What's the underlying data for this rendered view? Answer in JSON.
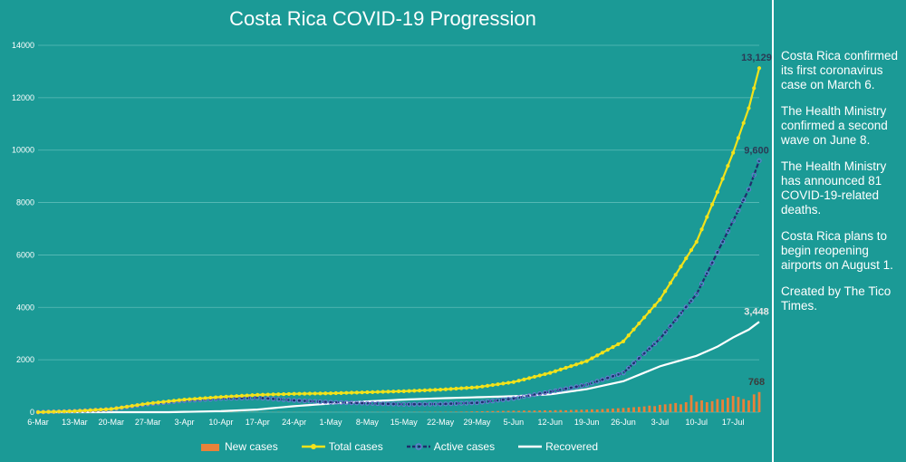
{
  "page": {
    "notes": [
      "Costa Rica confirmed its first coronavirus case on March 6.",
      "The Health Ministry confirmed a second wave on June 8.",
      "The Health Ministry has announced 81 COVID-19-related deaths.",
      "Costa Rica plans to begin reopening airports on August 1.",
      "Created by The Tico Times."
    ]
  },
  "colors": {
    "background": "#1b9a96",
    "new_cases": "#e8823a",
    "total_cases": "#f2e21a",
    "active_cases": "#1f2e6b",
    "active_marker": "#6f78d8",
    "recovered": "#ffffff",
    "grid": "#5cbcb8",
    "text": "#ffffff"
  },
  "chart_data": {
    "type": "line",
    "title": "Costa Rica COVID-19 Progression",
    "start_date": "6-Mar",
    "num_days": 139,
    "ylim": [
      0,
      14000
    ],
    "y_ticks": [
      0,
      2000,
      4000,
      6000,
      8000,
      10000,
      12000,
      14000
    ],
    "y_tick_labels": [
      "0",
      "2000",
      "4000",
      "6000",
      "8000",
      "10000",
      "12000",
      "14000"
    ],
    "x_tick_labels": [
      "6-Mar",
      "13-Mar",
      "20-Mar",
      "27-Mar",
      "3-Apr",
      "10-Apr",
      "17-Apr",
      "24-Apr",
      "1-May",
      "8-May",
      "15-May",
      "22-May",
      "29-May",
      "5-Jun",
      "12-Jun",
      "19-Jun",
      "26-Jun",
      "3-Jul",
      "10-Jul",
      "17-Jul"
    ],
    "x_tick_step_days": 7,
    "series": [
      {
        "name": "Total cases",
        "kind": "line",
        "anchor_days": [
          0,
          7,
          14,
          21,
          28,
          35,
          42,
          49,
          56,
          63,
          70,
          77,
          84,
          91,
          98,
          105,
          112,
          119,
          126,
          130,
          133,
          136,
          138
        ],
        "anchor_values": [
          1,
          40,
          120,
          330,
          480,
          580,
          660,
          700,
          720,
          760,
          800,
          860,
          950,
          1150,
          1500,
          1950,
          2700,
          4300,
          6500,
          8400,
          9900,
          11600,
          13129
        ]
      },
      {
        "name": "Active cases",
        "kind": "line",
        "anchor_days": [
          0,
          7,
          14,
          21,
          28,
          35,
          42,
          49,
          56,
          63,
          70,
          77,
          84,
          91,
          98,
          105,
          112,
          119,
          126,
          130,
          133,
          136,
          138
        ],
        "anchor_values": [
          1,
          40,
          115,
          310,
          440,
          520,
          550,
          450,
          380,
          340,
          300,
          310,
          360,
          520,
          780,
          1050,
          1500,
          2800,
          4500,
          6100,
          7300,
          8500,
          9600
        ]
      },
      {
        "name": "Recovered",
        "kind": "line",
        "anchor_days": [
          0,
          25,
          35,
          42,
          49,
          56,
          63,
          70,
          77,
          84,
          91,
          98,
          105,
          112,
          119,
          126,
          130,
          133,
          136,
          138
        ],
        "anchor_values": [
          0,
          0,
          40,
          100,
          230,
          330,
          410,
          480,
          530,
          570,
          610,
          680,
          880,
          1180,
          1750,
          2150,
          2500,
          2850,
          3150,
          3448
        ]
      },
      {
        "name": "New cases",
        "kind": "bar",
        "values": [
          1,
          0,
          4,
          3,
          5,
          8,
          6,
          10,
          9,
          7,
          12,
          15,
          18,
          20,
          24,
          26,
          28,
          30,
          25,
          30,
          32,
          28,
          25,
          22,
          20,
          18,
          20,
          16,
          18,
          15,
          14,
          12,
          12,
          10,
          11,
          10,
          9,
          8,
          9,
          8,
          8,
          7,
          8,
          6,
          6,
          5,
          6,
          5,
          4,
          5,
          3,
          3,
          4,
          3,
          3,
          2,
          3,
          4,
          3,
          5,
          4,
          6,
          5,
          6,
          5,
          7,
          6,
          7,
          8,
          6,
          8,
          7,
          9,
          8,
          10,
          11,
          12,
          13,
          14,
          15,
          18,
          20,
          22,
          28,
          30,
          35,
          40,
          42,
          45,
          48,
          50,
          55,
          52,
          60,
          58,
          62,
          65,
          70,
          68,
          75,
          80,
          72,
          85,
          90,
          95,
          100,
          110,
          105,
          120,
          130,
          140,
          150,
          160,
          170,
          190,
          200,
          220,
          250,
          230,
          280,
          300,
          320,
          350,
          300,
          380,
          650,
          400,
          450,
          380,
          420,
          500,
          480,
          550,
          620,
          580,
          500,
          450,
          680,
          768
        ]
      }
    ],
    "end_labels": [
      {
        "series": "Total cases",
        "value": 13129,
        "text": "13,129"
      },
      {
        "series": "Active cases",
        "value": 9600,
        "text": "9,600"
      },
      {
        "series": "Recovered",
        "value": 3448,
        "text": "3,448"
      },
      {
        "series": "New cases",
        "value": 768,
        "text": "768"
      }
    ],
    "legend": {
      "position": "bottom",
      "items": [
        "New cases",
        "Total cases",
        "Active cases",
        "Recovered"
      ]
    }
  }
}
